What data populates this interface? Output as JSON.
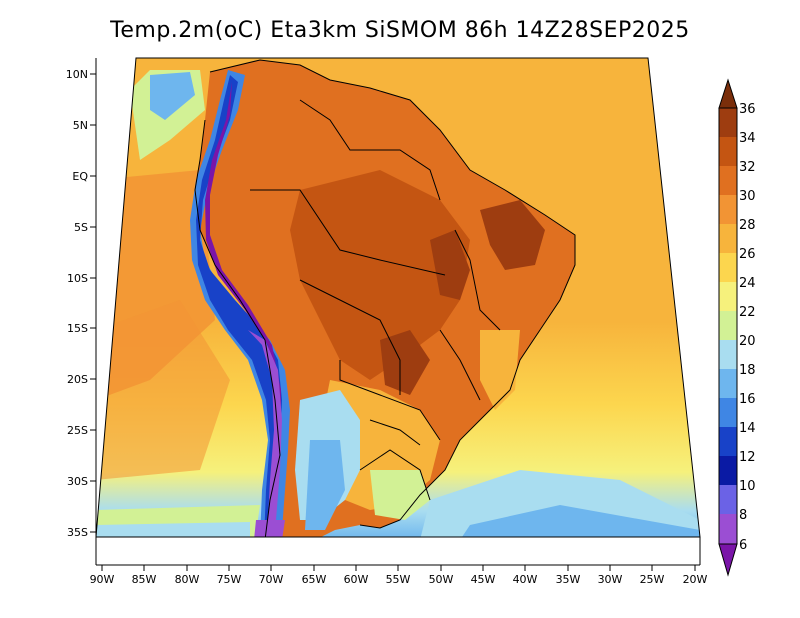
{
  "title": "Temp.2m(oC) Eta3km SiSMOM 86h 14Z28SEP2025",
  "latitude_labels": [
    "10N",
    "5N",
    "EQ",
    "5S",
    "10S",
    "15S",
    "20S",
    "25S",
    "30S",
    "35S"
  ],
  "longitude_labels": [
    "90W",
    "85W",
    "80W",
    "75W",
    "70W",
    "65W",
    "60W",
    "55W",
    "50W",
    "45W",
    "40W",
    "35W",
    "30W",
    "25W",
    "20W"
  ],
  "colorbar": {
    "labels": [
      "36",
      "34",
      "32",
      "30",
      "28",
      "26",
      "24",
      "22",
      "20",
      "18",
      "16",
      "14",
      "12",
      "10",
      "8",
      "6"
    ],
    "colors": [
      "#7a2e0a",
      "#9e3d10",
      "#c45512",
      "#e07020",
      "#f29434",
      "#f7b43c",
      "#fcd64e",
      "#f6f17c",
      "#d2f195",
      "#a9ddf0",
      "#6eb6ee",
      "#3f86e4",
      "#1842c8",
      "#0a1aa4",
      "#6b62e6",
      "#9b4ed3",
      "#7a15a8"
    ]
  }
}
